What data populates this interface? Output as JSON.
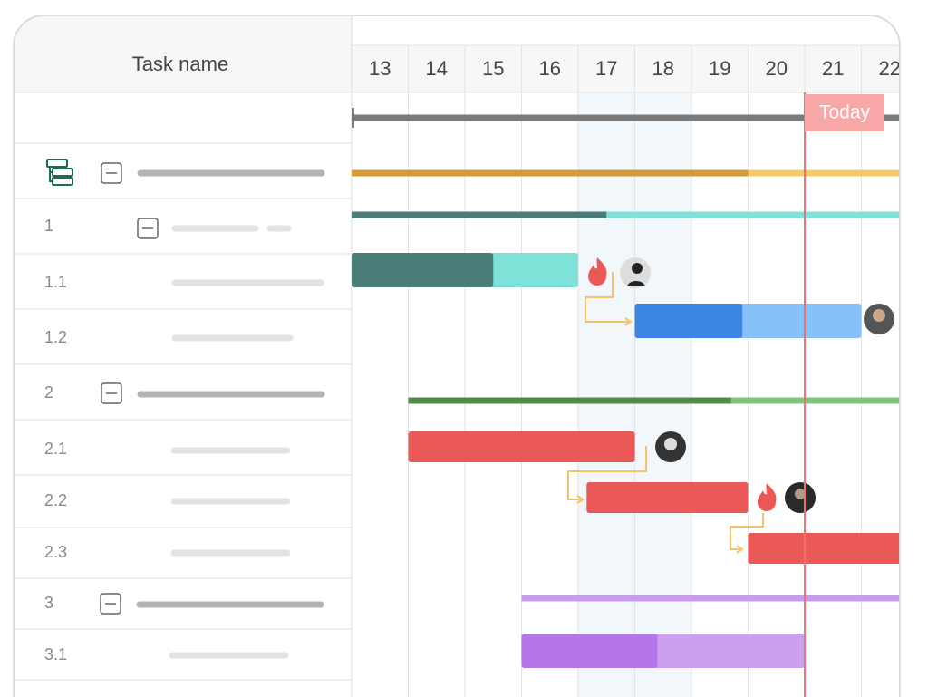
{
  "header": {
    "task_name": "Task name"
  },
  "days": [
    13,
    14,
    15,
    16,
    17,
    18,
    19,
    20,
    21,
    22
  ],
  "today": 21,
  "today_label": "Today",
  "rows": [
    "1",
    "1.1",
    "1.2",
    "2",
    "2.1",
    "2.2",
    "2.3",
    "3",
    "3.1"
  ],
  "bars": [
    {
      "style": "line",
      "start": 13,
      "end": 23,
      "progress": 23,
      "color": "#7a7a7a",
      "light": "#7a7a7a"
    },
    {
      "style": "line",
      "start": 13,
      "end": 23,
      "progress": 20,
      "color": "#d39a3a",
      "light": "#f3c96a"
    },
    {
      "style": "line",
      "start": 13,
      "end": 23,
      "progress": 17.5,
      "color": "#4b7d78",
      "light": "#7de3d9"
    },
    {
      "style": "bar",
      "start": 13,
      "end": 17,
      "progress": 15.5,
      "color": "#4b7d78",
      "light": "#7de3d9"
    },
    {
      "style": "bar",
      "start": 18,
      "end": 22,
      "progress": 19.9,
      "color": "#3a86e0",
      "light": "#86c1fb"
    },
    {
      "style": "line",
      "start": 14,
      "end": 23,
      "progress": 19.7,
      "color": "#4f8a47",
      "light": "#7ec47d"
    },
    {
      "style": "bar",
      "start": 14,
      "end": 18,
      "progress": 18,
      "color": "#ea5858",
      "light": "#ea5858"
    },
    {
      "style": "bar",
      "start": 17.15,
      "end": 20,
      "progress": 20,
      "color": "#ea5858",
      "light": "#ea5858"
    },
    {
      "style": "bar",
      "start": 20,
      "end": 23,
      "progress": 23,
      "color": "#ea5858",
      "light": "#ea5858"
    },
    {
      "style": "line",
      "start": 16,
      "end": 23,
      "progress": 16,
      "color": "#c89bee",
      "light": "#c89bee"
    },
    {
      "style": "bar",
      "start": 16,
      "end": 21,
      "progress": 18.4,
      "color": "#b476e8",
      "light": "#cda0ef"
    }
  ]
}
